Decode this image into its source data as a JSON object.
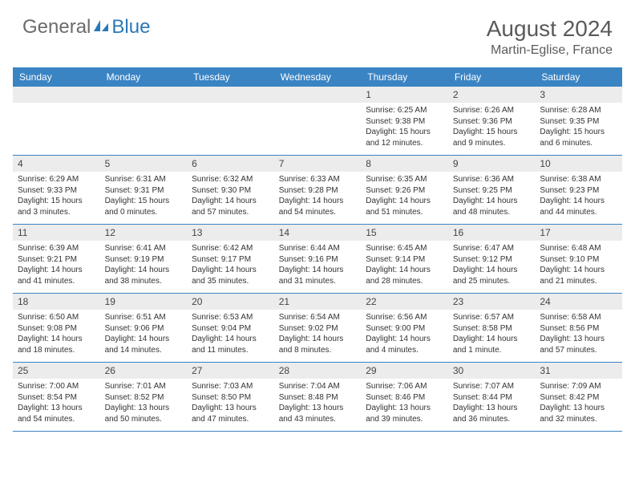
{
  "logo": {
    "prefix": "General",
    "suffix": "Blue"
  },
  "title": "August 2024",
  "location": "Martin-Eglise, France",
  "colors": {
    "header_bg": "#3a84c4",
    "header_text": "#ffffff",
    "band_bg": "#ececec",
    "border": "#3a84c4",
    "logo_gray": "#6b6b6b",
    "logo_blue": "#2a78b8",
    "title_color": "#5a5a5a"
  },
  "day_headers": [
    "Sunday",
    "Monday",
    "Tuesday",
    "Wednesday",
    "Thursday",
    "Friday",
    "Saturday"
  ],
  "weeks": [
    [
      {
        "num": "",
        "sunrise": "",
        "sunset": "",
        "daylight": ""
      },
      {
        "num": "",
        "sunrise": "",
        "sunset": "",
        "daylight": ""
      },
      {
        "num": "",
        "sunrise": "",
        "sunset": "",
        "daylight": ""
      },
      {
        "num": "",
        "sunrise": "",
        "sunset": "",
        "daylight": ""
      },
      {
        "num": "1",
        "sunrise": "Sunrise: 6:25 AM",
        "sunset": "Sunset: 9:38 PM",
        "daylight": "Daylight: 15 hours and 12 minutes."
      },
      {
        "num": "2",
        "sunrise": "Sunrise: 6:26 AM",
        "sunset": "Sunset: 9:36 PM",
        "daylight": "Daylight: 15 hours and 9 minutes."
      },
      {
        "num": "3",
        "sunrise": "Sunrise: 6:28 AM",
        "sunset": "Sunset: 9:35 PM",
        "daylight": "Daylight: 15 hours and 6 minutes."
      }
    ],
    [
      {
        "num": "4",
        "sunrise": "Sunrise: 6:29 AM",
        "sunset": "Sunset: 9:33 PM",
        "daylight": "Daylight: 15 hours and 3 minutes."
      },
      {
        "num": "5",
        "sunrise": "Sunrise: 6:31 AM",
        "sunset": "Sunset: 9:31 PM",
        "daylight": "Daylight: 15 hours and 0 minutes."
      },
      {
        "num": "6",
        "sunrise": "Sunrise: 6:32 AM",
        "sunset": "Sunset: 9:30 PM",
        "daylight": "Daylight: 14 hours and 57 minutes."
      },
      {
        "num": "7",
        "sunrise": "Sunrise: 6:33 AM",
        "sunset": "Sunset: 9:28 PM",
        "daylight": "Daylight: 14 hours and 54 minutes."
      },
      {
        "num": "8",
        "sunrise": "Sunrise: 6:35 AM",
        "sunset": "Sunset: 9:26 PM",
        "daylight": "Daylight: 14 hours and 51 minutes."
      },
      {
        "num": "9",
        "sunrise": "Sunrise: 6:36 AM",
        "sunset": "Sunset: 9:25 PM",
        "daylight": "Daylight: 14 hours and 48 minutes."
      },
      {
        "num": "10",
        "sunrise": "Sunrise: 6:38 AM",
        "sunset": "Sunset: 9:23 PM",
        "daylight": "Daylight: 14 hours and 44 minutes."
      }
    ],
    [
      {
        "num": "11",
        "sunrise": "Sunrise: 6:39 AM",
        "sunset": "Sunset: 9:21 PM",
        "daylight": "Daylight: 14 hours and 41 minutes."
      },
      {
        "num": "12",
        "sunrise": "Sunrise: 6:41 AM",
        "sunset": "Sunset: 9:19 PM",
        "daylight": "Daylight: 14 hours and 38 minutes."
      },
      {
        "num": "13",
        "sunrise": "Sunrise: 6:42 AM",
        "sunset": "Sunset: 9:17 PM",
        "daylight": "Daylight: 14 hours and 35 minutes."
      },
      {
        "num": "14",
        "sunrise": "Sunrise: 6:44 AM",
        "sunset": "Sunset: 9:16 PM",
        "daylight": "Daylight: 14 hours and 31 minutes."
      },
      {
        "num": "15",
        "sunrise": "Sunrise: 6:45 AM",
        "sunset": "Sunset: 9:14 PM",
        "daylight": "Daylight: 14 hours and 28 minutes."
      },
      {
        "num": "16",
        "sunrise": "Sunrise: 6:47 AM",
        "sunset": "Sunset: 9:12 PM",
        "daylight": "Daylight: 14 hours and 25 minutes."
      },
      {
        "num": "17",
        "sunrise": "Sunrise: 6:48 AM",
        "sunset": "Sunset: 9:10 PM",
        "daylight": "Daylight: 14 hours and 21 minutes."
      }
    ],
    [
      {
        "num": "18",
        "sunrise": "Sunrise: 6:50 AM",
        "sunset": "Sunset: 9:08 PM",
        "daylight": "Daylight: 14 hours and 18 minutes."
      },
      {
        "num": "19",
        "sunrise": "Sunrise: 6:51 AM",
        "sunset": "Sunset: 9:06 PM",
        "daylight": "Daylight: 14 hours and 14 minutes."
      },
      {
        "num": "20",
        "sunrise": "Sunrise: 6:53 AM",
        "sunset": "Sunset: 9:04 PM",
        "daylight": "Daylight: 14 hours and 11 minutes."
      },
      {
        "num": "21",
        "sunrise": "Sunrise: 6:54 AM",
        "sunset": "Sunset: 9:02 PM",
        "daylight": "Daylight: 14 hours and 8 minutes."
      },
      {
        "num": "22",
        "sunrise": "Sunrise: 6:56 AM",
        "sunset": "Sunset: 9:00 PM",
        "daylight": "Daylight: 14 hours and 4 minutes."
      },
      {
        "num": "23",
        "sunrise": "Sunrise: 6:57 AM",
        "sunset": "Sunset: 8:58 PM",
        "daylight": "Daylight: 14 hours and 1 minute."
      },
      {
        "num": "24",
        "sunrise": "Sunrise: 6:58 AM",
        "sunset": "Sunset: 8:56 PM",
        "daylight": "Daylight: 13 hours and 57 minutes."
      }
    ],
    [
      {
        "num": "25",
        "sunrise": "Sunrise: 7:00 AM",
        "sunset": "Sunset: 8:54 PM",
        "daylight": "Daylight: 13 hours and 54 minutes."
      },
      {
        "num": "26",
        "sunrise": "Sunrise: 7:01 AM",
        "sunset": "Sunset: 8:52 PM",
        "daylight": "Daylight: 13 hours and 50 minutes."
      },
      {
        "num": "27",
        "sunrise": "Sunrise: 7:03 AM",
        "sunset": "Sunset: 8:50 PM",
        "daylight": "Daylight: 13 hours and 47 minutes."
      },
      {
        "num": "28",
        "sunrise": "Sunrise: 7:04 AM",
        "sunset": "Sunset: 8:48 PM",
        "daylight": "Daylight: 13 hours and 43 minutes."
      },
      {
        "num": "29",
        "sunrise": "Sunrise: 7:06 AM",
        "sunset": "Sunset: 8:46 PM",
        "daylight": "Daylight: 13 hours and 39 minutes."
      },
      {
        "num": "30",
        "sunrise": "Sunrise: 7:07 AM",
        "sunset": "Sunset: 8:44 PM",
        "daylight": "Daylight: 13 hours and 36 minutes."
      },
      {
        "num": "31",
        "sunrise": "Sunrise: 7:09 AM",
        "sunset": "Sunset: 8:42 PM",
        "daylight": "Daylight: 13 hours and 32 minutes."
      }
    ]
  ]
}
